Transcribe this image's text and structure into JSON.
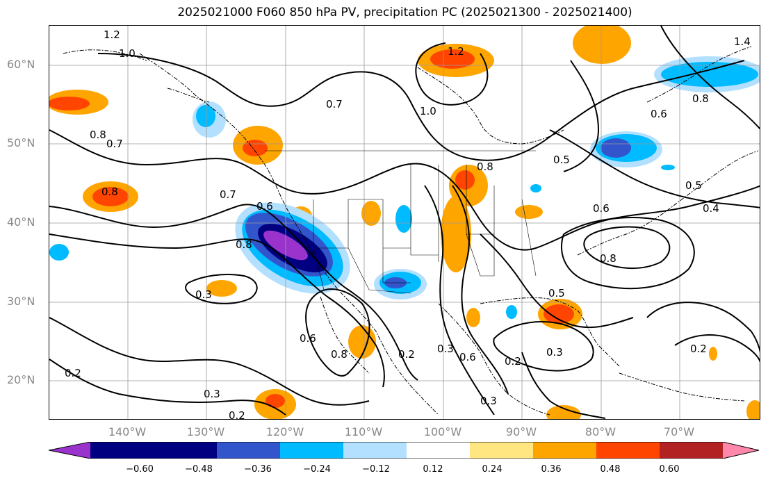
{
  "title": "2025021000 F060 850 hPa PV, precipitation PC (2025021300 - 2025021400)",
  "latitude_labels": [
    "60°N",
    "50°N",
    "40°N",
    "30°N",
    "20°N"
  ],
  "longitude_labels": [
    "140°W",
    "130°W",
    "120°W",
    "110°W",
    "100°W",
    "90°W",
    "80°W",
    "70°W"
  ],
  "colorbar": {
    "ticks": [
      "−0.60",
      "−0.48",
      "−0.36",
      "−0.24",
      "−0.12",
      "0.12",
      "0.24",
      "0.36",
      "0.48",
      "0.60"
    ],
    "colors": [
      "#9933cc",
      "#000080",
      "#3355cc",
      "#00bbff",
      "#b3e0ff",
      "#ffffff",
      "#ffe680",
      "#ffa500",
      "#ff4500",
      "#b22222",
      "#ff88aa"
    ]
  },
  "contour_labels": [
    "1.2",
    "1.0",
    "0.7",
    "1.0",
    "1.2",
    "1.4",
    "0.8",
    "0.6",
    "0.8",
    "0.7",
    "0.8",
    "0.7",
    "0.6",
    "0.8",
    "0.8",
    "0.5",
    "0.5",
    "0.6",
    "0.4",
    "0.8",
    "0.3",
    "0.6",
    "0.8",
    "0.2",
    "0.3",
    "0.6",
    "0.2",
    "0.3",
    "0.5",
    "0.2",
    "0.2",
    "0.3",
    "0.2",
    "0.3"
  ]
}
